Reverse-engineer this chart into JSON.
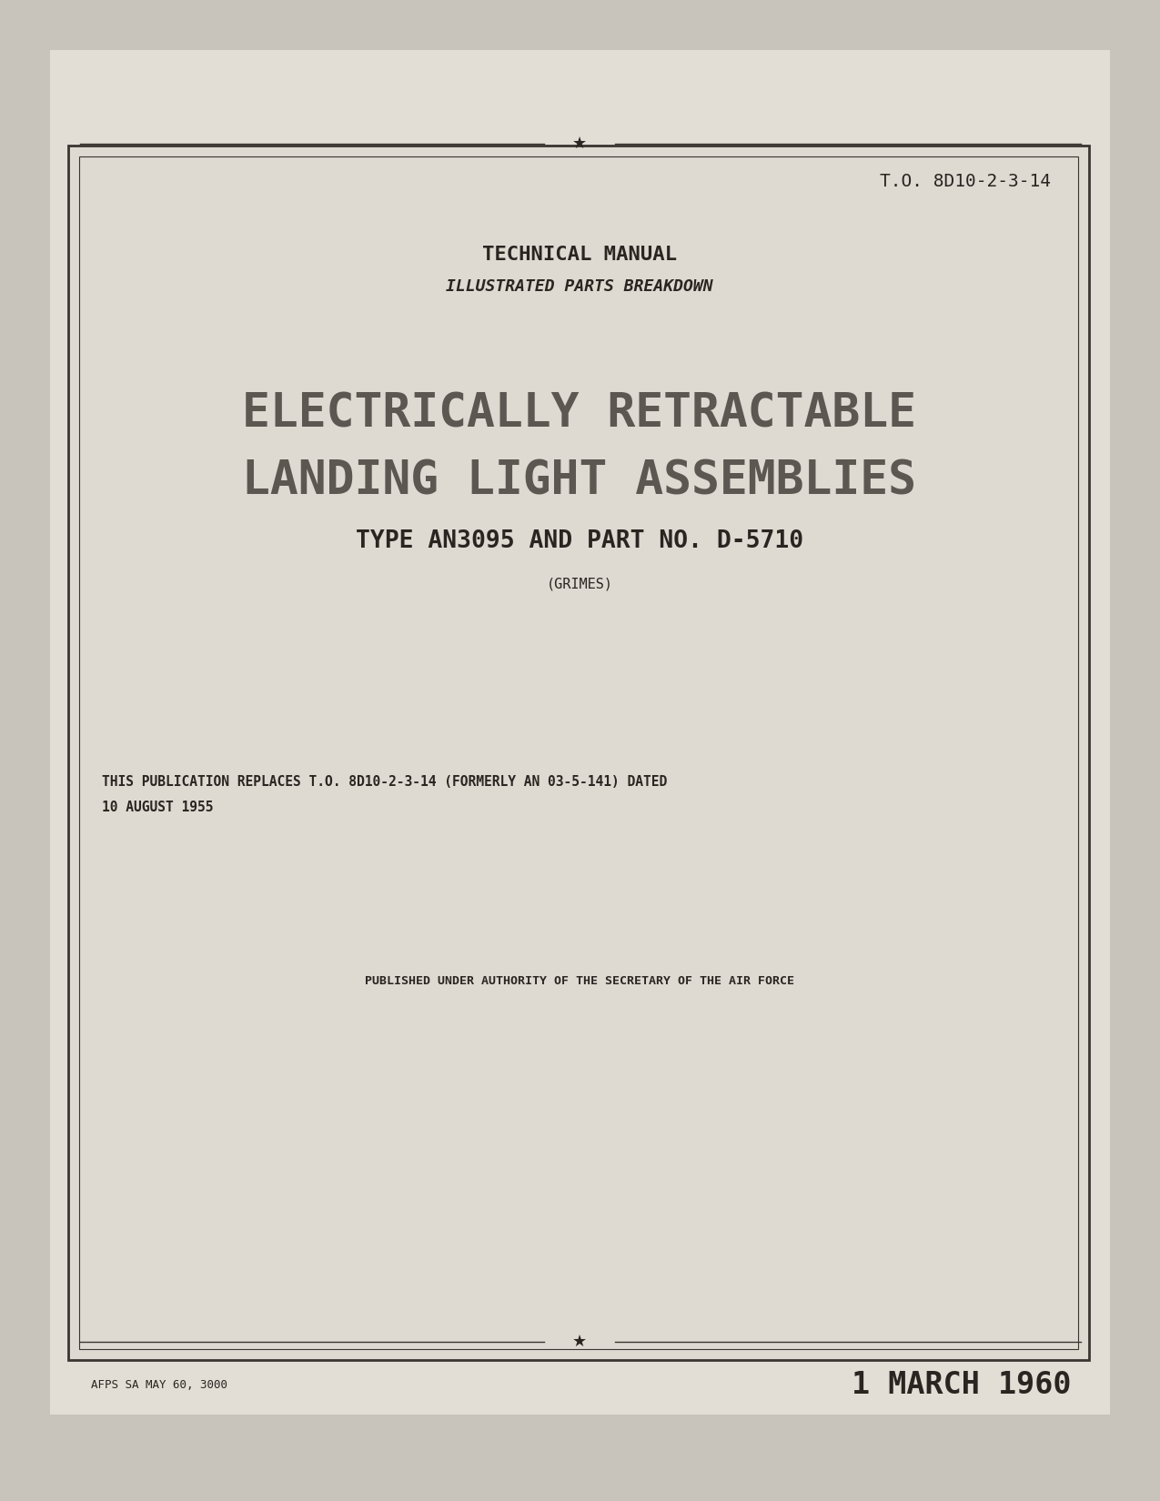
{
  "bg_color": "#c8c4bc",
  "page_bg": "#e2ddd5",
  "inner_bg": "#dedad2",
  "border_color": "#3a3530",
  "to_number": "T.O. 8D10-2-3-14",
  "title1": "TECHNICAL MANUAL",
  "title2": "ILLUSTRATED PARTS BREAKDOWN",
  "main_title1": "ELECTRICALLY RETRACTABLE",
  "main_title2": "LANDING LIGHT ASSEMBLIES",
  "sub_title": "TYPE AN3095 AND PART NO. D-5710",
  "maker": "(GRIMES)",
  "publication_text1": "THIS PUBLICATION REPLACES T.O. 8D10-2-3-14 (FORMERLY AN 03-5-141) DATED",
  "publication_text2": "10 AUGUST 1955",
  "authority_text": "PUBLISHED UNDER AUTHORITY OF THE SECRETARY OF THE AIR FORCE",
  "footer_left": "AFPS SA MAY 60, 3000",
  "footer_right": "1 MARCH 1960",
  "text_color": "#2a2520",
  "light_text": "#4a4540"
}
